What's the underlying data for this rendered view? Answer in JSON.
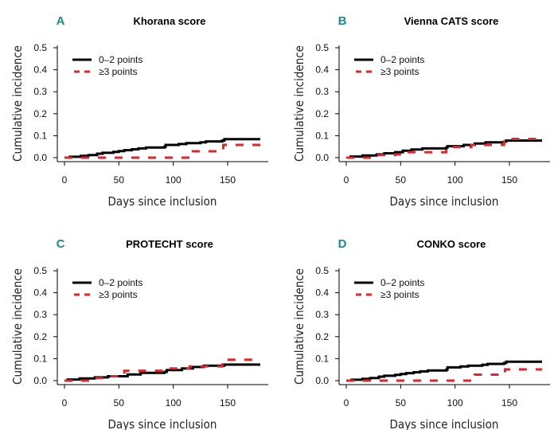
{
  "colors": {
    "group_low": "#000000",
    "group_high": "#e0262b",
    "panel_letter": "#1a8a8a"
  },
  "chart_data": [
    {
      "type": "line",
      "step": true,
      "letter": "A",
      "title": "Khorana score",
      "xlabel": "Days since inclusion",
      "ylabel": "Cumulative incidence",
      "xlim": [
        0,
        180
      ],
      "ylim": [
        0,
        0.5
      ],
      "xticks": [
        "0",
        "50",
        "100",
        "150"
      ],
      "yticks": [
        "0.0",
        "0.1",
        "0.2",
        "0.3",
        "0.4",
        "0.5"
      ],
      "legend_position": "top-left",
      "grid": false,
      "series": [
        {
          "name": "0–2 points",
          "style": "solid",
          "x": [
            0,
            5,
            15,
            22,
            30,
            35,
            45,
            50,
            55,
            62,
            68,
            75,
            92,
            93,
            105,
            112,
            125,
            130,
            145,
            147,
            180
          ],
          "y": [
            0,
            0.004,
            0.008,
            0.012,
            0.018,
            0.022,
            0.026,
            0.03,
            0.034,
            0.038,
            0.042,
            0.046,
            0.05,
            0.058,
            0.062,
            0.066,
            0.07,
            0.074,
            0.078,
            0.084,
            0.084
          ]
        },
        {
          "name": "≥3 points",
          "style": "dashed",
          "x": [
            0,
            118,
            146,
            180
          ],
          "y": [
            0,
            0.029,
            0.058,
            0.058
          ]
        }
      ]
    },
    {
      "type": "line",
      "step": true,
      "letter": "B",
      "title": "Vienna CATS score",
      "xlabel": "Days since inclusion",
      "ylabel": "Cumulative incidence",
      "xlim": [
        0,
        180
      ],
      "ylim": [
        0,
        0.5
      ],
      "xticks": [
        "0",
        "50",
        "100",
        "150"
      ],
      "yticks": [
        "0.0",
        "0.1",
        "0.2",
        "0.3",
        "0.4",
        "0.5"
      ],
      "legend_position": "top-left",
      "grid": false,
      "series": [
        {
          "name": "0–2 points",
          "style": "solid",
          "x": [
            0,
            4,
            15,
            28,
            35,
            45,
            52,
            60,
            70,
            92,
            93,
            108,
            118,
            128,
            145,
            147,
            180
          ],
          "y": [
            0,
            0.005,
            0.01,
            0.015,
            0.02,
            0.025,
            0.032,
            0.037,
            0.042,
            0.046,
            0.052,
            0.058,
            0.064,
            0.07,
            0.073,
            0.078,
            0.078
          ]
        },
        {
          "name": "≥3 points",
          "style": "dashed",
          "x": [
            0,
            28,
            45,
            55,
            92,
            115,
            145,
            180
          ],
          "y": [
            0,
            0.012,
            0.015,
            0.025,
            0.048,
            0.058,
            0.085,
            0.085
          ]
        }
      ]
    },
    {
      "type": "line",
      "step": true,
      "letter": "C",
      "title": "PROTECHT score",
      "xlabel": "Days since inclusion",
      "ylabel": "Cumulative incidence",
      "xlim": [
        0,
        180
      ],
      "ylim": [
        0,
        0.5
      ],
      "xticks": [
        "0",
        "50",
        "100",
        "150"
      ],
      "yticks": [
        "0.0",
        "0.1",
        "0.2",
        "0.3",
        "0.4",
        "0.5"
      ],
      "legend_position": "top-left",
      "grid": false,
      "series": [
        {
          "name": "0–2 points",
          "style": "solid",
          "x": [
            0,
            3,
            14,
            28,
            40,
            58,
            70,
            92,
            94,
            108,
            118,
            128,
            147,
            180
          ],
          "y": [
            0,
            0.005,
            0.01,
            0.015,
            0.02,
            0.028,
            0.035,
            0.04,
            0.048,
            0.055,
            0.062,
            0.068,
            0.073,
            0.073
          ]
        },
        {
          "name": "≥3 points",
          "style": "dashed",
          "x": [
            0,
            25,
            40,
            55,
            95,
            115,
            145,
            180
          ],
          "y": [
            0,
            0.012,
            0.02,
            0.045,
            0.055,
            0.065,
            0.095,
            0.095
          ]
        }
      ]
    },
    {
      "type": "line",
      "step": true,
      "letter": "D",
      "title": "CONKO score",
      "xlabel": "Days since inclusion",
      "ylabel": "Cumulative incidence",
      "xlim": [
        0,
        180
      ],
      "ylim": [
        0,
        0.5
      ],
      "xticks": [
        "0",
        "50",
        "100",
        "150"
      ],
      "yticks": [
        "0.0",
        "0.1",
        "0.2",
        "0.3",
        "0.4",
        "0.5"
      ],
      "legend_position": "top-left",
      "grid": false,
      "series": [
        {
          "name": "0–2 points",
          "style": "solid",
          "x": [
            0,
            5,
            15,
            22,
            30,
            35,
            45,
            50,
            55,
            62,
            68,
            75,
            92,
            93,
            105,
            112,
            125,
            130,
            145,
            147,
            180
          ],
          "y": [
            0,
            0.004,
            0.008,
            0.012,
            0.018,
            0.022,
            0.026,
            0.03,
            0.034,
            0.038,
            0.042,
            0.046,
            0.05,
            0.06,
            0.064,
            0.068,
            0.072,
            0.076,
            0.08,
            0.086,
            0.086
          ]
        },
        {
          "name": "≥3 points",
          "style": "dashed",
          "x": [
            0,
            118,
            146,
            180
          ],
          "y": [
            0,
            0.027,
            0.051,
            0.051
          ]
        }
      ]
    }
  ]
}
